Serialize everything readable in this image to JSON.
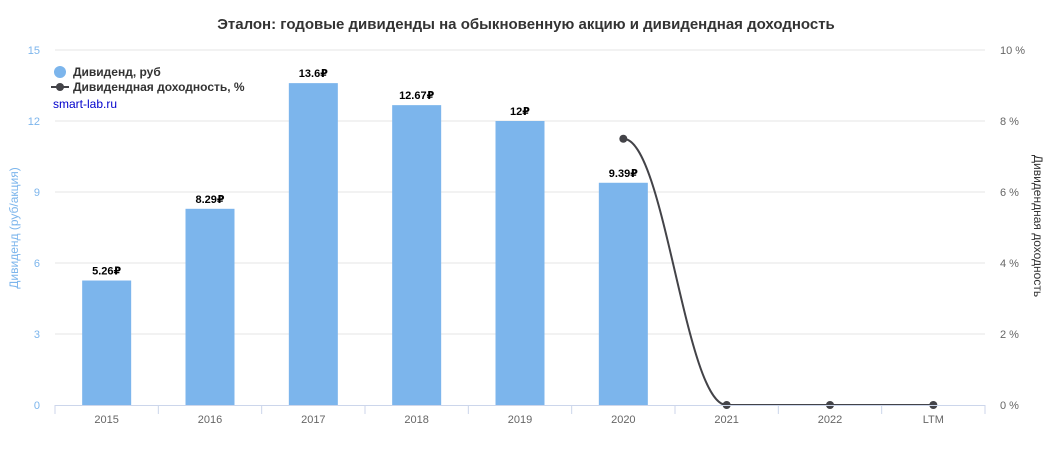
{
  "chart_data": {
    "type": "bar",
    "title": "Эталон: годовые дивиденды на обыкновенную акцию и дивидендная доходность",
    "categories": [
      "2015",
      "2016",
      "2017",
      "2018",
      "2019",
      "2020",
      "2021",
      "2022",
      "LTM"
    ],
    "series": [
      {
        "name": "Дивиденд, руб",
        "type": "bar",
        "axis": "left",
        "color": "#7cb5ec",
        "values": [
          5.26,
          8.29,
          13.6,
          12.67,
          12,
          9.39,
          null,
          null,
          null
        ],
        "labels": [
          "5.26₽",
          "8.29₽",
          "13.6₽",
          "12.67₽",
          "12₽",
          "9.39₽",
          "",
          "",
          ""
        ]
      },
      {
        "name": "Дивидендная доходность, %",
        "type": "line",
        "axis": "right",
        "color": "#434348",
        "values": [
          null,
          null,
          null,
          null,
          null,
          7.5,
          0,
          0,
          0
        ]
      }
    ],
    "y_left": {
      "label": "Дивиденд (руб/акция)",
      "min": 0,
      "max": 15,
      "ticks": [
        0,
        3,
        6,
        9,
        12,
        15
      ],
      "tick_labels": [
        "0",
        "3",
        "6",
        "9",
        "12",
        "15"
      ]
    },
    "y_right": {
      "label": "Дивидендная доходность",
      "min": 0,
      "max": 10,
      "ticks": [
        0,
        2,
        4,
        6,
        8,
        10
      ],
      "tick_labels": [
        "0 %",
        "2 %",
        "4 %",
        "6 %",
        "8 %",
        "10 %"
      ]
    },
    "grid": true,
    "legend_position": "top-left",
    "credit": "smart-lab.ru"
  }
}
